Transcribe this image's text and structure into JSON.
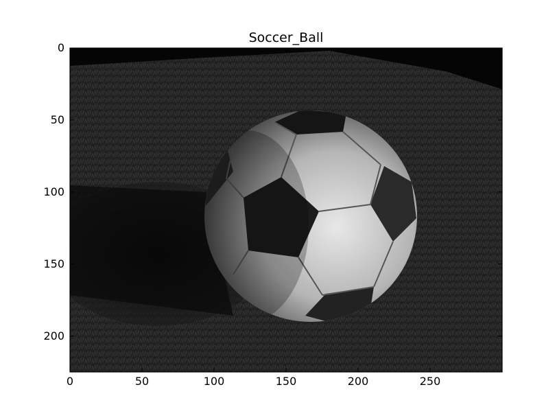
{
  "figure": {
    "title": "Soccer_Ball",
    "image_size": {
      "width": 300,
      "height": 225
    },
    "x_ticks": [
      0,
      50,
      100,
      150,
      200,
      250
    ],
    "y_ticks": [
      0,
      50,
      100,
      150,
      200
    ],
    "x_range": [
      0,
      300
    ],
    "y_range": [
      0,
      225
    ],
    "y_axis_inverted": true,
    "colormap": "gray",
    "colors": {
      "background": "#ffffff",
      "axes_frame": "#000000",
      "grass_dark": "#1e1e1e",
      "grass_mid": "#3a3a3a",
      "ball_panel_light": "#d8d8d8",
      "ball_panel_dark": "#1a1a1a"
    },
    "image": {
      "subject": "soccer ball on grass",
      "icon": "soccer-ball-photo"
    }
  }
}
